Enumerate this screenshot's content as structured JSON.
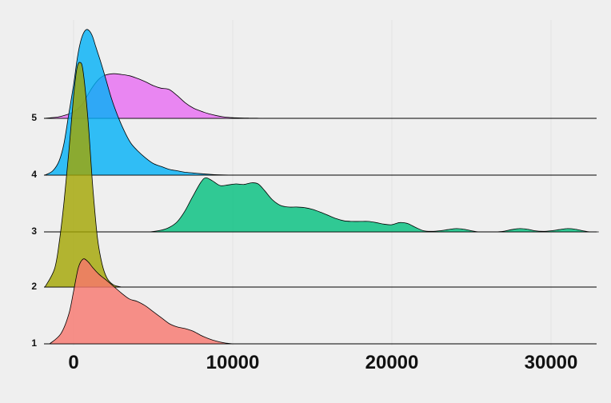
{
  "chart_data": {
    "type": "ridgeline",
    "title": "",
    "xlabel": "",
    "ylabel": "",
    "xlim": [
      -2000,
      33000
    ],
    "x_ticks": [
      0,
      10000,
      20000,
      30000
    ],
    "x_tick_labels": [
      "0",
      "10000",
      "20000",
      "30000"
    ],
    "categories": [
      "1",
      "2",
      "3",
      "4",
      "5"
    ],
    "grid": true,
    "legend": "none",
    "series": [
      {
        "name": "1",
        "color": "#F8766D",
        "x": [
          -1500,
          -800,
          -300,
          0,
          300,
          600,
          900,
          1200,
          1600,
          2000,
          2500,
          3000,
          3500,
          4000,
          4500,
          5000,
          5500,
          6000,
          6500,
          7000,
          7500,
          8000,
          8500,
          9000,
          9500,
          10000
        ],
        "density": [
          0.0,
          0.12,
          0.35,
          0.62,
          0.9,
          1.0,
          0.97,
          0.9,
          0.82,
          0.76,
          0.68,
          0.6,
          0.53,
          0.5,
          0.45,
          0.38,
          0.31,
          0.24,
          0.2,
          0.18,
          0.15,
          0.1,
          0.06,
          0.03,
          0.01,
          0.0
        ]
      },
      {
        "name": "2",
        "color": "#A3A500",
        "x": [
          -1800,
          -1200,
          -900,
          -600,
          -300,
          0,
          200,
          400,
          600,
          900,
          1200,
          1500,
          1800,
          2100,
          2500,
          3000
        ],
        "density": [
          0.0,
          0.08,
          0.2,
          0.38,
          0.6,
          0.85,
          0.97,
          1.0,
          0.96,
          0.75,
          0.45,
          0.22,
          0.1,
          0.04,
          0.01,
          0.0
        ]
      },
      {
        "name": "3",
        "color": "#00BF7D",
        "x": [
          4800,
          5500,
          6000,
          6500,
          7000,
          7500,
          8000,
          8300,
          8700,
          9200,
          9700,
          10200,
          10700,
          11200,
          11600,
          12000,
          12500,
          13000,
          13500,
          14000,
          14500,
          15000,
          15500,
          16000,
          16500,
          17000,
          17500,
          18000,
          18500,
          19000,
          19500,
          20000,
          20500,
          21000,
          21500,
          22000,
          22500,
          23000,
          23500,
          24000,
          24500,
          25000,
          25500,
          26000,
          26500,
          27000,
          27500,
          28000,
          28500,
          29000,
          29500,
          30000,
          30500,
          31000,
          31500,
          32000,
          32500,
          33000
        ],
        "density": [
          0.0,
          0.03,
          0.08,
          0.18,
          0.38,
          0.65,
          0.9,
          0.98,
          0.93,
          0.84,
          0.85,
          0.87,
          0.86,
          0.89,
          0.87,
          0.75,
          0.58,
          0.48,
          0.45,
          0.45,
          0.44,
          0.41,
          0.36,
          0.3,
          0.24,
          0.2,
          0.19,
          0.19,
          0.19,
          0.17,
          0.14,
          0.13,
          0.17,
          0.15,
          0.08,
          0.02,
          0.01,
          0.02,
          0.04,
          0.06,
          0.05,
          0.02,
          0.0,
          0.0,
          0.0,
          0.01,
          0.04,
          0.06,
          0.05,
          0.02,
          0.01,
          0.02,
          0.04,
          0.06,
          0.05,
          0.02,
          0.0,
          0.0
        ]
      },
      {
        "name": "4",
        "color": "#00B0F6",
        "x": [
          -1800,
          -1300,
          -900,
          -600,
          -300,
          0,
          200,
          400,
          600,
          800,
          1000,
          1200,
          1400,
          1700,
          2000,
          2400,
          2800,
          3200,
          3600,
          4000,
          4500,
          5000,
          5500,
          6000,
          6500,
          7000,
          7500,
          8000,
          8500,
          9000,
          10000
        ],
        "density": [
          0.0,
          0.03,
          0.1,
          0.22,
          0.42,
          0.62,
          0.78,
          0.9,
          0.97,
          1.0,
          0.99,
          0.95,
          0.88,
          0.78,
          0.67,
          0.52,
          0.4,
          0.3,
          0.22,
          0.17,
          0.12,
          0.08,
          0.06,
          0.04,
          0.03,
          0.02,
          0.015,
          0.01,
          0.006,
          0.003,
          0.0
        ]
      },
      {
        "name": "5",
        "color": "#E76BF3",
        "x": [
          -1800,
          -1000,
          -500,
          0,
          500,
          800,
          1200,
          1600,
          2000,
          2500,
          3000,
          3500,
          4000,
          4500,
          5000,
          5500,
          6000,
          6500,
          7000,
          7500,
          8000,
          8500,
          9000,
          9500,
          10000,
          10500,
          11000,
          11500,
          12000
        ],
        "density": [
          0.0,
          0.02,
          0.05,
          0.1,
          0.2,
          0.32,
          0.48,
          0.6,
          0.66,
          0.68,
          0.67,
          0.65,
          0.61,
          0.56,
          0.5,
          0.46,
          0.44,
          0.35,
          0.24,
          0.16,
          0.11,
          0.07,
          0.04,
          0.02,
          0.01,
          0.006,
          0.004,
          0.002,
          0.0
        ]
      }
    ]
  }
}
